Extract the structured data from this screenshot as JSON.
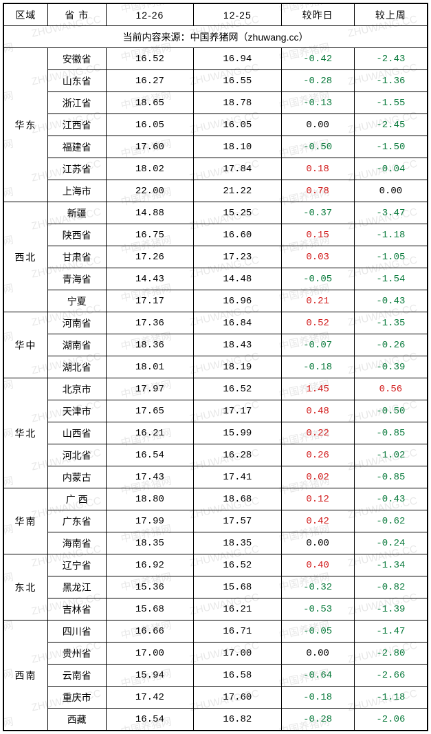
{
  "header": {
    "region": "区域",
    "province": "省 市",
    "date1": "12-26",
    "date2": "12-25",
    "delta_day": "较昨日",
    "delta_week": "较上周"
  },
  "source_text": "当前内容来源：中国养猪网（zhuwang.cc）",
  "watermark_text1": "中国养猪网",
  "watermark_text2": "ZHUWANG.CC",
  "regions": [
    {
      "name": "华东",
      "rows": [
        {
          "province": "安徽省",
          "d1": "16.52",
          "d2": "16.94",
          "dd": "-0.42",
          "dw": "-2.43"
        },
        {
          "province": "山东省",
          "d1": "16.27",
          "d2": "16.55",
          "dd": "-0.28",
          "dw": "-1.36"
        },
        {
          "province": "浙江省",
          "d1": "18.65",
          "d2": "18.78",
          "dd": "-0.13",
          "dw": "-1.55"
        },
        {
          "province": "江西省",
          "d1": "16.05",
          "d2": "16.05",
          "dd": "0.00",
          "dw": "-2.45"
        },
        {
          "province": "福建省",
          "d1": "17.60",
          "d2": "18.10",
          "dd": "-0.50",
          "dw": "-1.50"
        },
        {
          "province": "江苏省",
          "d1": "18.02",
          "d2": "17.84",
          "dd": "0.18",
          "dw": "-0.04"
        },
        {
          "province": "上海市",
          "d1": "22.00",
          "d2": "21.22",
          "dd": "0.78",
          "dw": "0.00"
        }
      ]
    },
    {
      "name": "西北",
      "rows": [
        {
          "province": "新疆",
          "d1": "14.88",
          "d2": "15.25",
          "dd": "-0.37",
          "dw": "-3.47"
        },
        {
          "province": "陕西省",
          "d1": "16.75",
          "d2": "16.60",
          "dd": "0.15",
          "dw": "-1.18"
        },
        {
          "province": "甘肃省",
          "d1": "17.26",
          "d2": "17.23",
          "dd": "0.03",
          "dw": "-1.05"
        },
        {
          "province": "青海省",
          "d1": "14.43",
          "d2": "14.48",
          "dd": "-0.05",
          "dw": "-1.54"
        },
        {
          "province": "宁夏",
          "d1": "17.17",
          "d2": "16.96",
          "dd": "0.21",
          "dw": "-0.43"
        }
      ]
    },
    {
      "name": "华中",
      "rows": [
        {
          "province": "河南省",
          "d1": "17.36",
          "d2": "16.84",
          "dd": "0.52",
          "dw": "-1.35"
        },
        {
          "province": "湖南省",
          "d1": "18.36",
          "d2": "18.43",
          "dd": "-0.07",
          "dw": "-0.26"
        },
        {
          "province": "湖北省",
          "d1": "18.01",
          "d2": "18.19",
          "dd": "-0.18",
          "dw": "-0.39"
        }
      ]
    },
    {
      "name": "华北",
      "rows": [
        {
          "province": "北京市",
          "d1": "17.97",
          "d2": "16.52",
          "dd": "1.45",
          "dw": "0.56"
        },
        {
          "province": "天津市",
          "d1": "17.65",
          "d2": "17.17",
          "dd": "0.48",
          "dw": "-0.50"
        },
        {
          "province": "山西省",
          "d1": "16.21",
          "d2": "15.99",
          "dd": "0.22",
          "dw": "-0.85"
        },
        {
          "province": "河北省",
          "d1": "16.54",
          "d2": "16.28",
          "dd": "0.26",
          "dw": "-1.02"
        },
        {
          "province": "内蒙古",
          "d1": "17.43",
          "d2": "17.41",
          "dd": "0.02",
          "dw": "-0.85"
        }
      ]
    },
    {
      "name": "华南",
      "rows": [
        {
          "province": "广 西",
          "d1": "18.80",
          "d2": "18.68",
          "dd": "0.12",
          "dw": "-0.43"
        },
        {
          "province": "广东省",
          "d1": "17.99",
          "d2": "17.57",
          "dd": "0.42",
          "dw": "-0.62"
        },
        {
          "province": "海南省",
          "d1": "18.35",
          "d2": "18.35",
          "dd": "0.00",
          "dw": "-0.24"
        }
      ]
    },
    {
      "name": "东北",
      "rows": [
        {
          "province": "辽宁省",
          "d1": "16.92",
          "d2": "16.52",
          "dd": "0.40",
          "dw": "-1.34"
        },
        {
          "province": "黑龙江",
          "d1": "15.36",
          "d2": "15.68",
          "dd": "-0.32",
          "dw": "-0.82"
        },
        {
          "province": "吉林省",
          "d1": "15.68",
          "d2": "16.21",
          "dd": "-0.53",
          "dw": "-1.39"
        }
      ]
    },
    {
      "name": "西南",
      "rows": [
        {
          "province": "四川省",
          "d1": "16.66",
          "d2": "16.71",
          "dd": "-0.05",
          "dw": "-1.47"
        },
        {
          "province": "贵州省",
          "d1": "17.00",
          "d2": "17.00",
          "dd": "0.00",
          "dw": "-2.80"
        },
        {
          "province": "云南省",
          "d1": "15.94",
          "d2": "16.58",
          "dd": "-0.64",
          "dw": "-2.66"
        },
        {
          "province": "重庆市",
          "d1": "17.42",
          "d2": "17.60",
          "dd": "-0.18",
          "dw": "-1.18"
        },
        {
          "province": "西藏",
          "d1": "16.54",
          "d2": "16.82",
          "dd": "-0.28",
          "dw": "-2.06"
        }
      ]
    }
  ],
  "colors": {
    "positive": "#d11a1a",
    "negative": "#0a7a3c",
    "border": "#000000",
    "watermark": "#e8e8e8"
  }
}
